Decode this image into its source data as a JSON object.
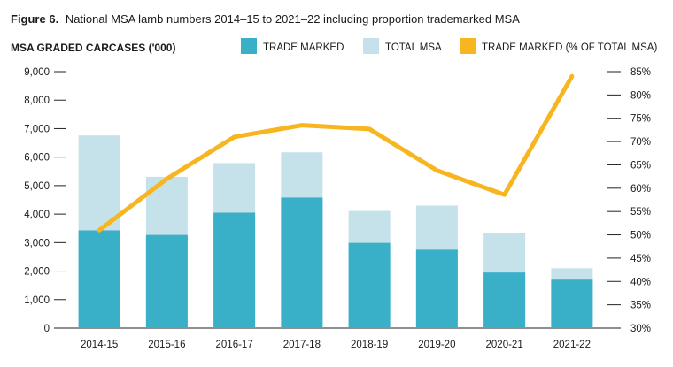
{
  "title": {
    "prefix": "Figure 6.",
    "text": "National MSA lamb numbers 2014–15 to 2021–22 including proportion trademarked MSA"
  },
  "chart_data": {
    "type": "bar",
    "ylabel": "MSA GRADED CARCASES ('000)",
    "categories": [
      "2014-15",
      "2015-16",
      "2016-17",
      "2017-18",
      "2018-19",
      "2019-20",
      "2020-21",
      "2021-22"
    ],
    "ylim": [
      0,
      9000
    ],
    "y2lim": [
      30,
      85
    ],
    "yticks": [
      "0",
      "1,000",
      "2,000",
      "3,000",
      "4,000",
      "5,000",
      "6,000",
      "7,000",
      "8,000",
      "9,000"
    ],
    "y2ticks": [
      "30%",
      "35%",
      "40%",
      "45%",
      "50%",
      "55%",
      "60%",
      "65%",
      "70%",
      "75%",
      "80%",
      "85%"
    ],
    "legend_position": "top",
    "series": [
      {
        "name": "TRADE MARKED",
        "kind": "bar",
        "color": "#3aafc8",
        "values": [
          3430,
          3270,
          4050,
          4580,
          2990,
          2750,
          1950,
          1700
        ]
      },
      {
        "name": "TOTAL MSA",
        "kind": "bar",
        "color": "#c5e2ea",
        "values": [
          6760,
          5310,
          5790,
          6170,
          4110,
          4300,
          3340,
          2100
        ]
      },
      {
        "name": "TRADE MARKED (% OF TOTAL MSA)",
        "kind": "line",
        "axis": "right",
        "color": "#f7b520",
        "values": [
          51,
          62,
          71,
          73.5,
          72.7,
          63.8,
          58.6,
          84
        ]
      }
    ]
  }
}
